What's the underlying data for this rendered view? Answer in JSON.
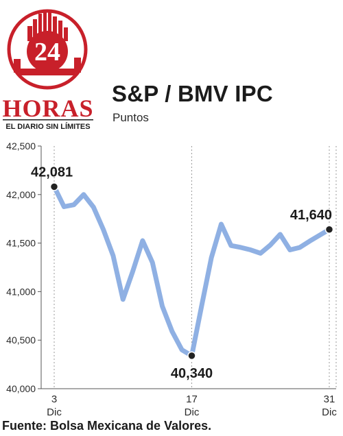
{
  "brand": {
    "badge_number": "24",
    "name": "HORAS",
    "tagline": "EL DIARIO SIN LÍMITES",
    "colors": {
      "red": "#c8202a",
      "black": "#1b1b1b"
    }
  },
  "header": {
    "title": "S&P / BMV IPC",
    "subtitle": "Puntos"
  },
  "footer": {
    "source": "Fuente: Bolsa Mexicana de Valores."
  },
  "chart_data": {
    "type": "line",
    "title": "S&P / BMV IPC",
    "subtitle": "Puntos",
    "ylim": [
      40000,
      42500
    ],
    "yticks": [
      {
        "value": 40000,
        "label": "40,000"
      },
      {
        "value": 40500,
        "label": "40,500"
      },
      {
        "value": 41000,
        "label": "41,000"
      },
      {
        "value": 41500,
        "label": "41,500"
      },
      {
        "value": 42000,
        "label": "42,000"
      },
      {
        "value": 42500,
        "label": "42,500"
      }
    ],
    "xlim": [
      3,
      31
    ],
    "xticks": [
      {
        "value": 3,
        "day": "3",
        "month": "Dic"
      },
      {
        "value": 17,
        "day": "17",
        "month": "Dic"
      },
      {
        "value": 31,
        "day": "31",
        "month": "Dic"
      }
    ],
    "grid": "vertical dashed",
    "series": [
      {
        "color": "#8fb0e3",
        "x": [
          3,
          4,
          5,
          6,
          7,
          8,
          9,
          10,
          11,
          12,
          13,
          14,
          15,
          16,
          17,
          18,
          19,
          20,
          21,
          22,
          23,
          24,
          25,
          26,
          27,
          28,
          29,
          30,
          31
        ],
        "y": [
          42081,
          41875,
          41895,
          42000,
          41870,
          41640,
          41370,
          40920,
          41210,
          41525,
          41300,
          40850,
          40590,
          40400,
          40340,
          40850,
          41350,
          41695,
          41475,
          41455,
          41430,
          41395,
          41480,
          41590,
          41430,
          41455,
          41520,
          41580,
          41640
        ]
      }
    ],
    "annotations": [
      {
        "x": 3,
        "y": 42081,
        "label": "42,081"
      },
      {
        "x": 17,
        "y": 40340,
        "label": "40,340"
      },
      {
        "x": 31,
        "y": 41640,
        "label": "41,640"
      }
    ]
  }
}
